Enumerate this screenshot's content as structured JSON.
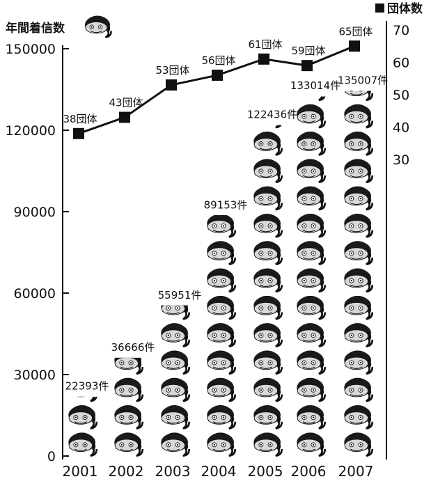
{
  "chart_data": {
    "type": "bar",
    "legend_label": "団体数",
    "ylabel_left": "年間着信数",
    "categories": [
      "2001",
      "2002",
      "2003",
      "2004",
      "2005",
      "2006",
      "2007"
    ],
    "series": [
      {
        "name": "年間着信数",
        "values": [
          22393,
          36666,
          55951,
          89153,
          122436,
          133014,
          135007
        ],
        "labels": [
          "22393件",
          "36666件",
          "55951件",
          "89153件",
          "122436件",
          "133014件",
          "135007件"
        ],
        "mark": "face-icon"
      },
      {
        "name": "団体数",
        "values": [
          38,
          43,
          53,
          56,
          61,
          59,
          65
        ],
        "labels": [
          "38団体",
          "43団体",
          "53団体",
          "56団体",
          "61団体",
          "59団体",
          "65団体"
        ],
        "type": "line"
      }
    ],
    "y_left": {
      "ticks": [
        "0",
        "30000",
        "60000",
        "90000",
        "120000",
        "150000"
      ],
      "ylim": [
        0,
        150000
      ]
    },
    "y_right": {
      "ticks": [
        "30",
        "40",
        "50",
        "60",
        "70"
      ],
      "ylim": [
        30,
        70
      ]
    },
    "legend_position": "top-right",
    "grid": false
  }
}
